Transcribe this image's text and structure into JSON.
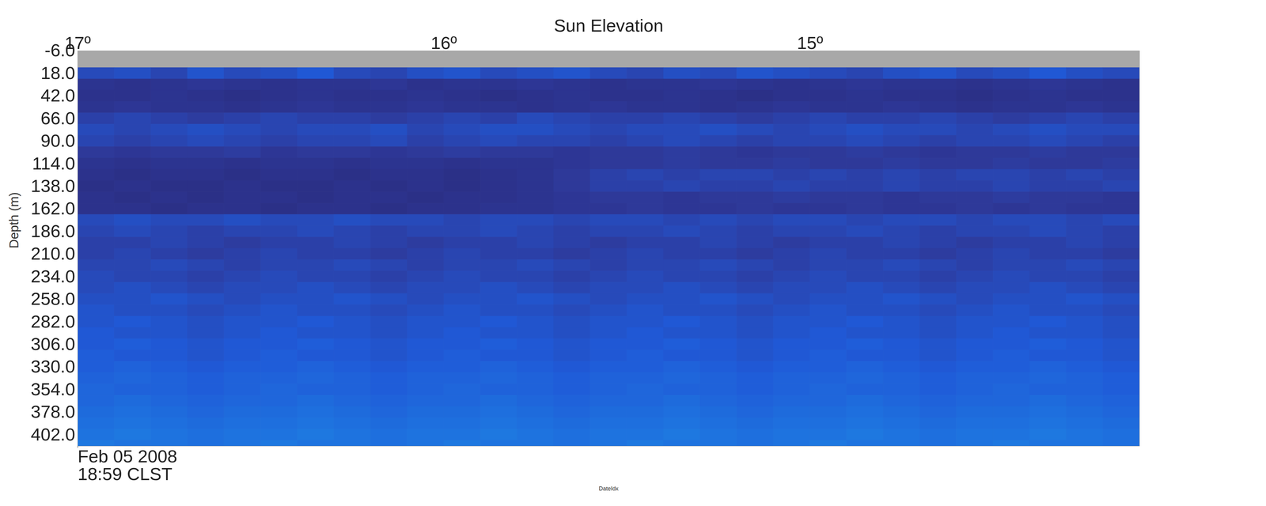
{
  "chart_data": {
    "type": "heatmap",
    "xlabel": "Sun Elevation",
    "xlim": [
      17,
      14.1
    ],
    "xticks": [
      {
        "value": 17,
        "label": "17º"
      },
      {
        "value": 16,
        "label": "16º"
      },
      {
        "value": 15,
        "label": "15º"
      }
    ],
    "x2label": "DateIdx",
    "x2ticks": [
      {
        "value": 17,
        "label": "Feb 05 2008\n18:59 CLST"
      }
    ],
    "ylabel": "Depth (m)",
    "ylim": [
      -6,
      414
    ],
    "yticks": [
      {
        "value": -6,
        "label": "-6.0"
      },
      {
        "value": 18,
        "label": "18.0"
      },
      {
        "value": 42,
        "label": "42.0"
      },
      {
        "value": 66,
        "label": "66.0"
      },
      {
        "value": 90,
        "label": "90.0"
      },
      {
        "value": 114,
        "label": "114.0"
      },
      {
        "value": 138,
        "label": "138.0"
      },
      {
        "value": 162,
        "label": "162.0"
      },
      {
        "value": 186,
        "label": "186.0"
      },
      {
        "value": 210,
        "label": "210.0"
      },
      {
        "value": 234,
        "label": "234.0"
      },
      {
        "value": 258,
        "label": "258.0"
      },
      {
        "value": 282,
        "label": "282.0"
      },
      {
        "value": 306,
        "label": "306.0"
      },
      {
        "value": 330,
        "label": "330.0"
      },
      {
        "value": 354,
        "label": "354.0"
      },
      {
        "value": 378,
        "label": "378.0"
      },
      {
        "value": 402,
        "label": "402.0"
      }
    ],
    "zlim": [
      -90,
      -50
    ],
    "x_bins": [
      17,
      16.9,
      16.8,
      16.7,
      16.6,
      16.5,
      16.4,
      16.3,
      16.2,
      16.1,
      16,
      15.9,
      15.8,
      15.7,
      15.6,
      15.5,
      15.4,
      15.3,
      15.2,
      15.1,
      15,
      14.9,
      14.8,
      14.7,
      14.6,
      14.5,
      14.4,
      14.3,
      14.2,
      14.1
    ],
    "y_bins": [
      12,
      24,
      36,
      48,
      60,
      72,
      84,
      96,
      108,
      120,
      132,
      144,
      156,
      168,
      180,
      192,
      204,
      216,
      228,
      240,
      252,
      264,
      276,
      288,
      300,
      312,
      324,
      336,
      348,
      360,
      372,
      384,
      396,
      408,
      414
    ],
    "values": [
      [
        -80,
        -79,
        -81,
        -78,
        -80,
        -79,
        -77,
        -80,
        -81,
        -79,
        -78,
        -80,
        -79,
        -78,
        -80,
        -81,
        -79,
        -80,
        -78,
        -79,
        -80,
        -81,
        -79,
        -78,
        -80,
        -79,
        -77,
        -79,
        -80
      ],
      [
        -86,
        -87,
        -86,
        -85,
        -86,
        -87,
        -86,
        -86,
        -85,
        -87,
        -86,
        -86,
        -85,
        -86,
        -87,
        -86,
        -86,
        -85,
        -86,
        -87,
        -86,
        -85,
        -86,
        -86,
        -87,
        -86,
        -85,
        -86,
        -87
      ],
      [
        -87,
        -87,
        -86,
        -87,
        -88,
        -87,
        -86,
        -87,
        -87,
        -86,
        -87,
        -88,
        -87,
        -86,
        -87,
        -87,
        -86,
        -87,
        -88,
        -87,
        -87,
        -86,
        -87,
        -87,
        -88,
        -87,
        -86,
        -87,
        -87
      ],
      [
        -86,
        -85,
        -86,
        -86,
        -87,
        -86,
        -85,
        -86,
        -86,
        -85,
        -86,
        -86,
        -87,
        -86,
        -85,
        -86,
        -86,
        -87,
        -86,
        -85,
        -86,
        -86,
        -85,
        -86,
        -87,
        -86,
        -86,
        -85,
        -86
      ],
      [
        -82,
        -81,
        -82,
        -83,
        -82,
        -81,
        -82,
        -82,
        -83,
        -82,
        -81,
        -82,
        -80,
        -81,
        -82,
        -82,
        -81,
        -82,
        -83,
        -82,
        -81,
        -82,
        -82,
        -81,
        -82,
        -83,
        -82,
        -81,
        -82
      ],
      [
        -80,
        -81,
        -80,
        -79,
        -80,
        -81,
        -80,
        -80,
        -79,
        -81,
        -80,
        -79,
        -79,
        -80,
        -81,
        -80,
        -80,
        -79,
        -80,
        -81,
        -80,
        -79,
        -80,
        -80,
        -81,
        -80,
        -79,
        -80,
        -80
      ],
      [
        -81,
        -82,
        -81,
        -80,
        -81,
        -82,
        -81,
        -81,
        -80,
        -82,
        -81,
        -80,
        -81,
        -81,
        -82,
        -81,
        -80,
        -81,
        -82,
        -81,
        -81,
        -80,
        -81,
        -82,
        -81,
        -81,
        -80,
        -81,
        -82
      ],
      [
        -84,
        -85,
        -84,
        -84,
        -83,
        -85,
        -84,
        -84,
        -85,
        -84,
        -83,
        -84,
        -84,
        -85,
        -84,
        -84,
        -83,
        -84,
        -85,
        -84,
        -84,
        -83,
        -84,
        -85,
        -84,
        -84,
        -83,
        -84,
        -84
      ],
      [
        -86,
        -87,
        -86,
        -86,
        -87,
        -86,
        -86,
        -87,
        -86,
        -86,
        -87,
        -86,
        -86,
        -85,
        -84,
        -84,
        -83,
        -84,
        -84,
        -83,
        -84,
        -84,
        -83,
        -84,
        -84,
        -83,
        -84,
        -84,
        -83
      ],
      [
        -87,
        -88,
        -87,
        -87,
        -88,
        -87,
        -87,
        -88,
        -87,
        -87,
        -88,
        -87,
        -86,
        -84,
        -82,
        -81,
        -82,
        -81,
        -81,
        -82,
        -81,
        -82,
        -81,
        -82,
        -81,
        -81,
        -82,
        -81,
        -82
      ],
      [
        -88,
        -87,
        -88,
        -88,
        -87,
        -88,
        -88,
        -87,
        -88,
        -87,
        -88,
        -87,
        -86,
        -84,
        -82,
        -82,
        -81,
        -82,
        -82,
        -81,
        -82,
        -82,
        -81,
        -82,
        -82,
        -81,
        -82,
        -82,
        -81
      ],
      [
        -87,
        -88,
        -87,
        -88,
        -87,
        -87,
        -88,
        -87,
        -87,
        -88,
        -87,
        -87,
        -86,
        -85,
        -84,
        -84,
        -85,
        -84,
        -84,
        -83,
        -84,
        -84,
        -85,
        -84,
        -84,
        -83,
        -84,
        -84,
        -85
      ],
      [
        -87,
        -87,
        -88,
        -87,
        -87,
        -88,
        -87,
        -87,
        -88,
        -87,
        -87,
        -86,
        -86,
        -85,
        -85,
        -84,
        -85,
        -85,
        -84,
        -85,
        -85,
        -84,
        -85,
        -85,
        -84,
        -85,
        -84,
        -85,
        -85
      ],
      [
        -80,
        -79,
        -80,
        -80,
        -79,
        -80,
        -80,
        -79,
        -80,
        -80,
        -81,
        -80,
        -80,
        -81,
        -80,
        -80,
        -81,
        -80,
        -81,
        -80,
        -80,
        -81,
        -80,
        -80,
        -81,
        -80,
        -80,
        -81,
        -80
      ],
      [
        -81,
        -80,
        -81,
        -82,
        -81,
        -81,
        -80,
        -81,
        -82,
        -81,
        -81,
        -80,
        -81,
        -82,
        -81,
        -81,
        -80,
        -81,
        -82,
        -81,
        -81,
        -80,
        -81,
        -82,
        -81,
        -81,
        -80,
        -81,
        -82
      ],
      [
        -82,
        -82,
        -81,
        -82,
        -83,
        -82,
        -82,
        -81,
        -82,
        -83,
        -82,
        -82,
        -81,
        -82,
        -83,
        -82,
        -82,
        -81,
        -82,
        -83,
        -82,
        -82,
        -81,
        -82,
        -83,
        -82,
        -82,
        -81,
        -82
      ],
      [
        -82,
        -81,
        -82,
        -83,
        -82,
        -81,
        -82,
        -82,
        -83,
        -82,
        -81,
        -82,
        -82,
        -83,
        -82,
        -81,
        -82,
        -82,
        -83,
        -82,
        -81,
        -82,
        -82,
        -83,
        -82,
        -81,
        -82,
        -82,
        -83
      ],
      [
        -81,
        -81,
        -80,
        -81,
        -82,
        -81,
        -81,
        -80,
        -81,
        -82,
        -81,
        -81,
        -80,
        -81,
        -82,
        -81,
        -81,
        -80,
        -81,
        -82,
        -81,
        -81,
        -80,
        -81,
        -82,
        -81,
        -81,
        -80,
        -81
      ],
      [
        -80,
        -81,
        -81,
        -82,
        -81,
        -80,
        -81,
        -81,
        -82,
        -81,
        -80,
        -81,
        -81,
        -82,
        -81,
        -80,
        -81,
        -81,
        -82,
        -81,
        -80,
        -81,
        -81,
        -82,
        -81,
        -80,
        -81,
        -81,
        -82
      ],
      [
        -80,
        -79,
        -80,
        -81,
        -80,
        -80,
        -79,
        -80,
        -81,
        -80,
        -80,
        -79,
        -80,
        -81,
        -80,
        -80,
        -79,
        -80,
        -81,
        -80,
        -80,
        -79,
        -80,
        -81,
        -80,
        -80,
        -79,
        -80,
        -81
      ],
      [
        -79,
        -79,
        -78,
        -79,
        -80,
        -79,
        -79,
        -78,
        -79,
        -80,
        -79,
        -79,
        -78,
        -79,
        -80,
        -79,
        -79,
        -78,
        -79,
        -80,
        -79,
        -79,
        -78,
        -79,
        -80,
        -79,
        -79,
        -78,
        -79
      ],
      [
        -78,
        -79,
        -79,
        -80,
        -79,
        -78,
        -79,
        -79,
        -80,
        -79,
        -78,
        -79,
        -79,
        -80,
        -79,
        -78,
        -79,
        -79,
        -80,
        -79,
        -78,
        -79,
        -79,
        -80,
        -79,
        -78,
        -79,
        -79,
        -80
      ],
      [
        -78,
        -77,
        -78,
        -79,
        -78,
        -78,
        -77,
        -78,
        -79,
        -78,
        -78,
        -77,
        -78,
        -79,
        -78,
        -78,
        -77,
        -78,
        -79,
        -78,
        -78,
        -77,
        -78,
        -79,
        -78,
        -78,
        -77,
        -78,
        -79
      ],
      [
        -77,
        -78,
        -78,
        -79,
        -78,
        -77,
        -78,
        -78,
        -79,
        -78,
        -77,
        -78,
        -78,
        -79,
        -78,
        -77,
        -78,
        -78,
        -79,
        -78,
        -77,
        -78,
        -78,
        -79,
        -78,
        -77,
        -78,
        -78,
        -79
      ],
      [
        -77,
        -76,
        -77,
        -78,
        -77,
        -77,
        -76,
        -77,
        -78,
        -77,
        -77,
        -76,
        -77,
        -78,
        -77,
        -77,
        -76,
        -77,
        -78,
        -77,
        -77,
        -76,
        -77,
        -78,
        -77,
        -77,
        -76,
        -77,
        -78
      ],
      [
        -76,
        -77,
        -77,
        -78,
        -77,
        -76,
        -77,
        -77,
        -78,
        -77,
        -76,
        -77,
        -77,
        -78,
        -77,
        -76,
        -77,
        -77,
        -78,
        -77,
        -76,
        -77,
        -77,
        -78,
        -77,
        -76,
        -77,
        -77,
        -78
      ],
      [
        -76,
        -75,
        -76,
        -77,
        -76,
        -76,
        -75,
        -76,
        -77,
        -76,
        -76,
        -75,
        -76,
        -77,
        -76,
        -76,
        -75,
        -76,
        -77,
        -76,
        -76,
        -75,
        -76,
        -77,
        -76,
        -76,
        -75,
        -76,
        -77
      ],
      [
        -75,
        -74,
        -75,
        -76,
        -75,
        -75,
        -74,
        -75,
        -76,
        -75,
        -75,
        -74,
        -75,
        -76,
        -75,
        -75,
        -74,
        -75,
        -76,
        -75,
        -75,
        -74,
        -75,
        -76,
        -75,
        -75,
        -74,
        -75,
        -76
      ],
      [
        -74,
        -75,
        -75,
        -76,
        -75,
        -74,
        -75,
        -75,
        -76,
        -75,
        -74,
        -75,
        -75,
        -76,
        -75,
        -74,
        -75,
        -75,
        -76,
        -75,
        -74,
        -75,
        -75,
        -76,
        -75,
        -74,
        -75,
        -75,
        -76
      ],
      [
        -74,
        -73,
        -74,
        -75,
        -74,
        -74,
        -73,
        -74,
        -75,
        -74,
        -74,
        -73,
        -74,
        -75,
        -74,
        -74,
        -73,
        -74,
        -75,
        -74,
        -74,
        -73,
        -74,
        -75,
        -74,
        -74,
        -73,
        -74,
        -75
      ],
      [
        -73,
        -72,
        -73,
        -74,
        -73,
        -73,
        -72,
        -73,
        -74,
        -73,
        -73,
        -72,
        -73,
        -74,
        -73,
        -73,
        -72,
        -73,
        -74,
        -73,
        -73,
        -72,
        -73,
        -74,
        -73,
        -73,
        -72,
        -73,
        -74
      ],
      [
        -72,
        -71,
        -72,
        -73,
        -72,
        -72,
        -71,
        -72,
        -73,
        -72,
        -72,
        -71,
        -72,
        -73,
        -72,
        -72,
        -71,
        -72,
        -73,
        -72,
        -72,
        -71,
        -72,
        -73,
        -72,
        -72,
        -71,
        -72,
        -73
      ],
      [
        -71,
        -70,
        -71,
        -72,
        -71,
        -71,
        -70,
        -71,
        -72,
        -71,
        -71,
        -70,
        -71,
        -72,
        -71,
        -71,
        -70,
        -71,
        -72,
        -71,
        -71,
        -70,
        -71,
        -72,
        -71,
        -71,
        -70,
        -71,
        -72
      ],
      [
        -70,
        -71,
        -71,
        -72,
        -71,
        -70,
        -71,
        -71,
        -72,
        -71,
        -70,
        -71,
        -71,
        -72,
        -71,
        -70,
        -71,
        -71,
        -72,
        -71,
        -70,
        -71,
        -71,
        -72,
        -71,
        -70,
        -71,
        -71,
        -72
      ]
    ]
  }
}
